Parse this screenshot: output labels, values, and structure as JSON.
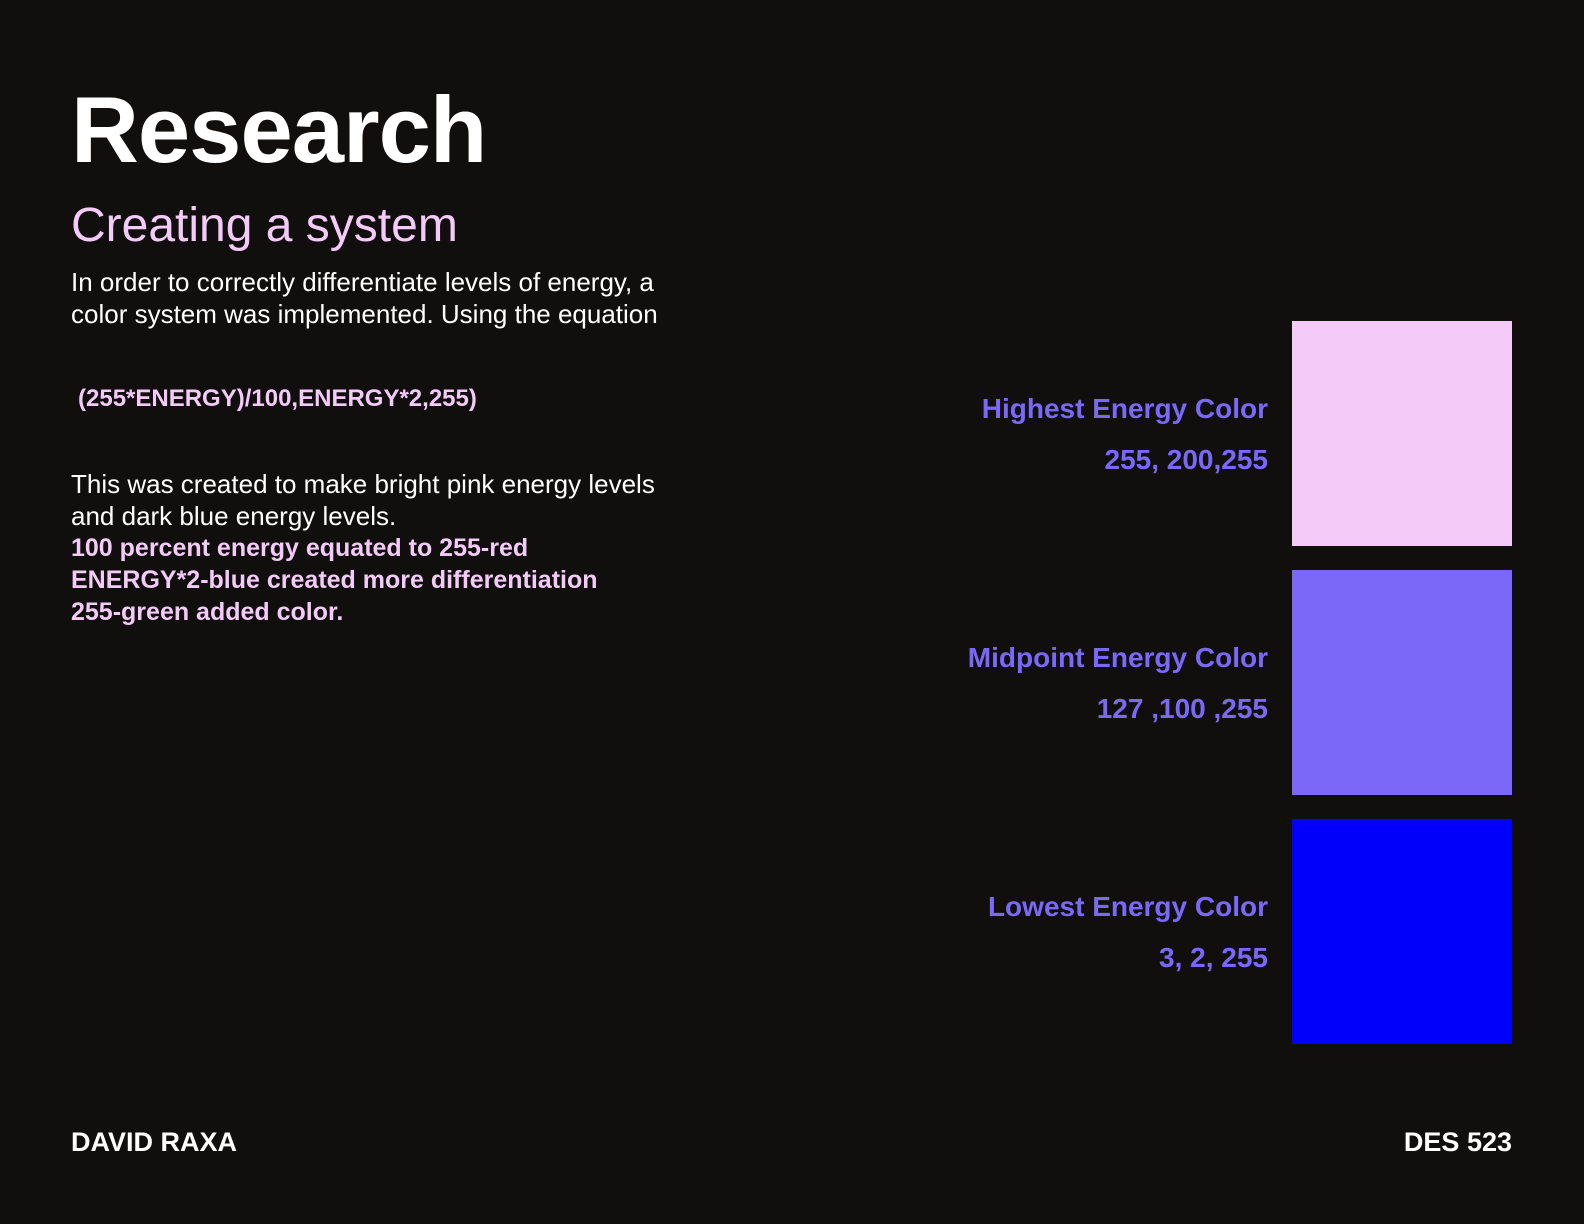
{
  "page": {
    "title": "Research",
    "subtitle": "Creating a system",
    "intro": "In order to correctly differentiate levels of energy, a color system was implemented. Using the equation",
    "equation": "(255*ENERGY)/100,ENERGY*2,255)",
    "explanation": "This was created to make bright pink energy levels and dark blue energy levels.",
    "notes": [
      "100 percent energy equated to 255-red",
      "ENERGY*2-blue created more differentiation",
      "255-green added color."
    ]
  },
  "swatches": [
    {
      "label": "Highest Energy Color",
      "value": "255, 200,255",
      "color": "#f3caf8"
    },
    {
      "label": "Midpoint Energy Color",
      "value": "127 ,100 ,255",
      "color": "#7b68f9"
    },
    {
      "label": "Lowest Energy Color",
      "value": "3, 2, 255",
      "color": "#0000fb"
    }
  ],
  "footer": {
    "author": "DAVID RAXA",
    "course": "DES 523"
  },
  "colors": {
    "background": "#100f0d",
    "accent_pink": "#f3caf8",
    "accent_purple": "#7b68f9",
    "text": "#ffffff"
  }
}
